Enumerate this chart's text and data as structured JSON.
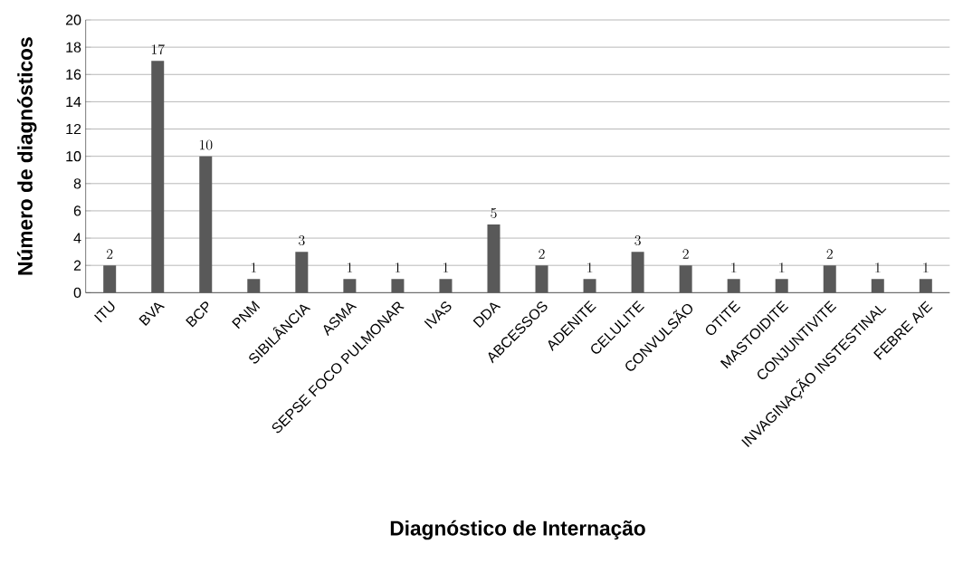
{
  "chart_data": {
    "type": "bar",
    "xlabel": "Diagnóstico de Internação",
    "ylabel": "Número de diagnósticos",
    "categories": [
      "ITU",
      "BVA",
      "BCP",
      "PNM",
      "SIBILÂNCIA",
      "ASMA",
      "SEPSE FOCO PULMONAR",
      "IVAS",
      "DDA",
      "ABCESSOS",
      "ADENITE",
      "CELULITE",
      "CONVULSÃO",
      "OTITE",
      "MASTOIDITE",
      "CONJUNTIVITE",
      "INVAGINAÇÃO INSTESTINAL",
      "FEBRE A/E"
    ],
    "values": [
      2,
      17,
      10,
      1,
      3,
      1,
      1,
      1,
      5,
      2,
      1,
      3,
      2,
      1,
      1,
      2,
      1,
      1
    ],
    "color": "#595959",
    "ylim": [
      0,
      20
    ],
    "yticks": [
      0,
      2,
      4,
      6,
      8,
      10,
      12,
      14,
      16,
      18,
      20
    ],
    "grid": "y",
    "data_labels": true
  }
}
